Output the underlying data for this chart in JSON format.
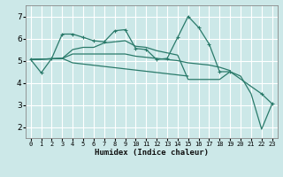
{
  "xlabel": "Humidex (Indice chaleur)",
  "bg_color": "#cce8e8",
  "grid_color": "#ffffff",
  "line_color": "#2a7a6a",
  "xlim": [
    -0.5,
    23.5
  ],
  "ylim": [
    1.5,
    7.5
  ],
  "xticks": [
    0,
    1,
    2,
    3,
    4,
    5,
    6,
    7,
    8,
    9,
    10,
    11,
    12,
    13,
    14,
    15,
    16,
    17,
    18,
    19,
    20,
    21,
    22,
    23
  ],
  "yticks": [
    2,
    3,
    4,
    5,
    6,
    7
  ],
  "series": [
    {
      "x": [
        0,
        1,
        2,
        3,
        4,
        5,
        6,
        7,
        8,
        9,
        10,
        11,
        12,
        13,
        14,
        15,
        16,
        17,
        18,
        19,
        22,
        23
      ],
      "y": [
        5.05,
        4.45,
        5.1,
        6.2,
        6.2,
        6.05,
        5.9,
        5.85,
        6.35,
        6.4,
        5.55,
        5.5,
        5.05,
        5.1,
        6.05,
        7.0,
        6.5,
        5.75,
        4.5,
        4.5,
        3.5,
        3.05
      ],
      "marker": true
    },
    {
      "x": [
        0,
        3,
        4,
        15
      ],
      "y": [
        5.05,
        5.1,
        4.9,
        4.3
      ],
      "marker": false
    },
    {
      "x": [
        0,
        3,
        4,
        5,
        6,
        7,
        8,
        9,
        10,
        11,
        12,
        13,
        14,
        15,
        16,
        17,
        18,
        19
      ],
      "y": [
        5.05,
        5.1,
        5.3,
        5.3,
        5.3,
        5.3,
        5.3,
        5.3,
        5.2,
        5.15,
        5.1,
        5.05,
        5.0,
        4.9,
        4.85,
        4.8,
        4.7,
        4.55
      ],
      "marker": false
    },
    {
      "x": [
        0,
        3,
        4,
        5,
        6,
        7,
        8,
        9,
        10,
        11,
        12,
        13,
        14,
        15,
        16,
        17,
        18,
        19,
        20,
        21,
        22,
        23
      ],
      "y": [
        5.05,
        5.1,
        5.5,
        5.6,
        5.6,
        5.8,
        5.85,
        5.9,
        5.65,
        5.6,
        5.45,
        5.35,
        5.25,
        4.15,
        4.15,
        4.15,
        4.15,
        4.5,
        4.3,
        3.5,
        1.9,
        3.05
      ],
      "marker": false
    }
  ]
}
